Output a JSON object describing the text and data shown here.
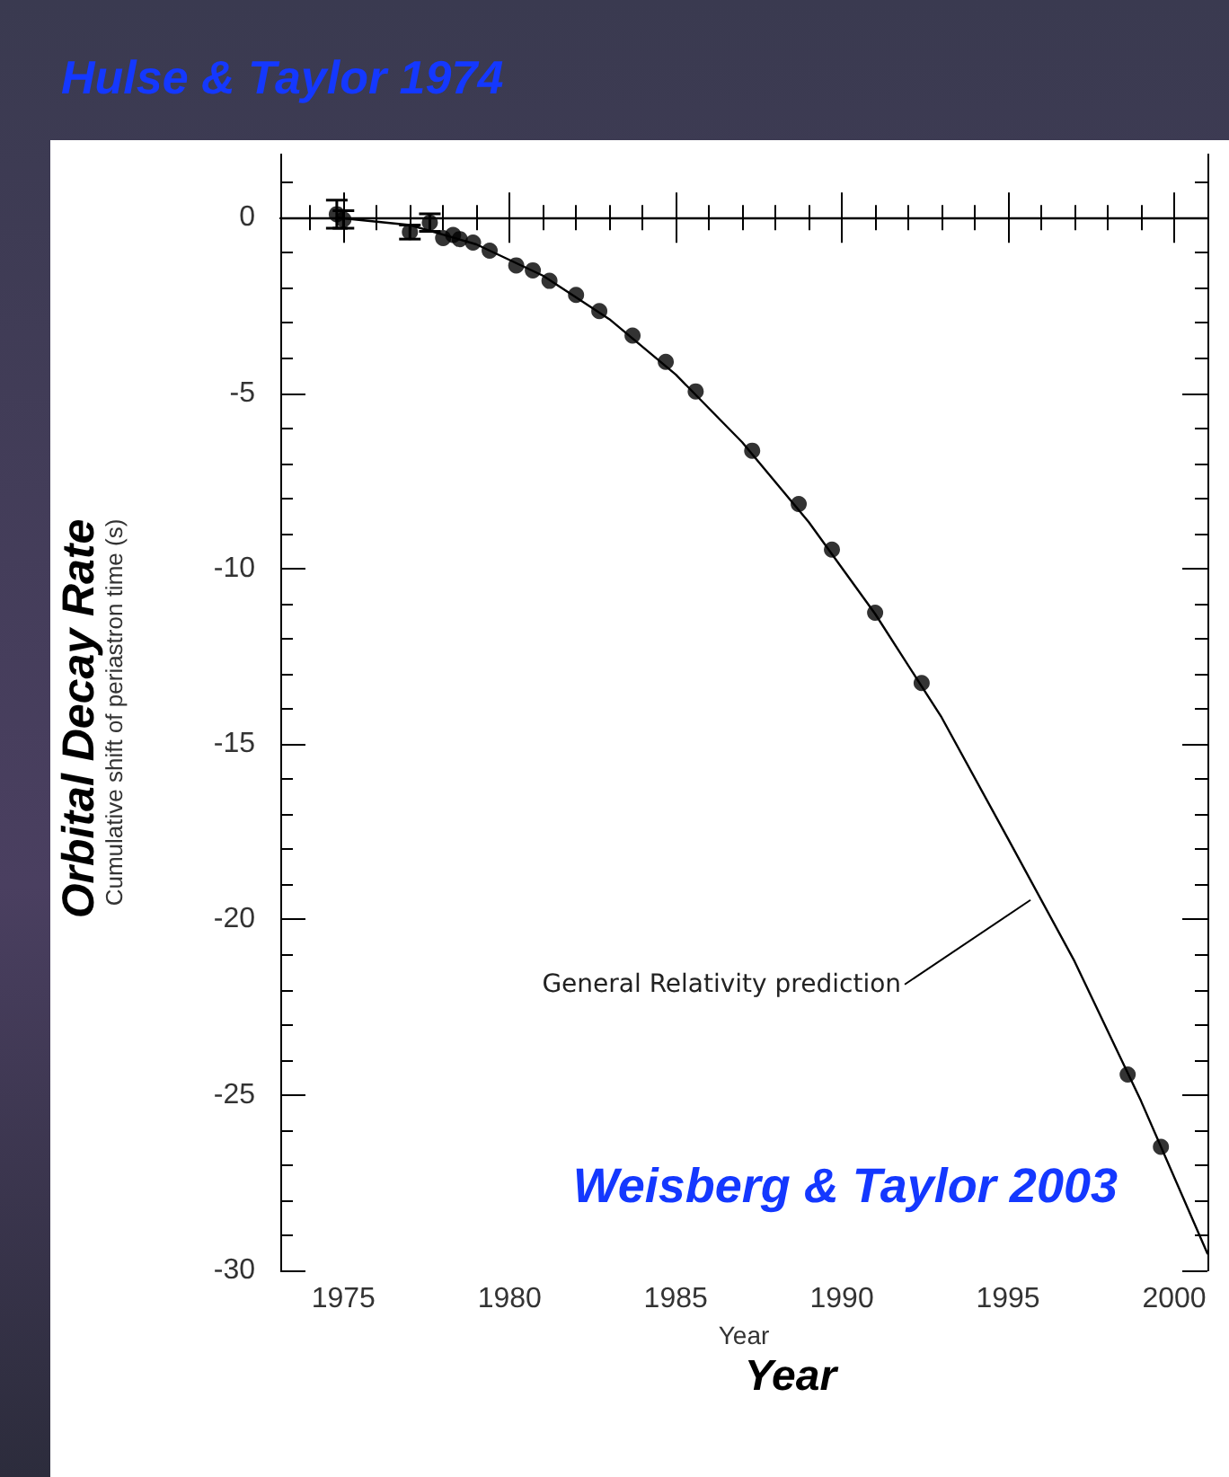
{
  "chart_data": {
    "type": "scatter",
    "title": "Hulse & Taylor 1974",
    "xlabel": "Year",
    "ylabel": "Cumulative shift of periastron time (s)",
    "annotations": [
      "General Relativity prediction",
      "Weisberg & Taylor 2003",
      "Orbital Decay Rate",
      "Year"
    ],
    "xlim": [
      1973.1,
      2001
    ],
    "xticks": [
      {
        "value": 1974,
        "label": null
      },
      1975,
      {
        "value": 1976,
        "label": null
      },
      {
        "value": 1977,
        "label": null
      },
      {
        "value": 1978,
        "label": null
      },
      {
        "value": 1979,
        "label": null
      },
      1980,
      {
        "value": 1981,
        "label": null
      },
      {
        "value": 1982,
        "label": null
      },
      {
        "value": 1983,
        "label": null
      },
      {
        "value": 1984,
        "label": null
      },
      1985,
      {
        "value": 1986,
        "label": null
      },
      {
        "value": 1987,
        "label": null
      },
      {
        "value": 1988,
        "label": null
      },
      {
        "value": 1989,
        "label": null
      },
      1990,
      {
        "value": 1991,
        "label": null
      },
      {
        "value": 1992,
        "label": null
      },
      {
        "value": 1993,
        "label": null
      },
      {
        "value": 1994,
        "label": null
      },
      1995,
      {
        "value": 1996,
        "label": null
      },
      {
        "value": 1997,
        "label": null
      },
      {
        "value": 1998,
        "label": null
      },
      {
        "value": 1999,
        "label": null
      },
      2000
    ],
    "ylim": [
      -30,
      1.8
    ],
    "yticks": [
      -30,
      {
        "value": -29,
        "label": null
      },
      {
        "value": -28,
        "label": null
      },
      {
        "value": -27,
        "label": null
      },
      {
        "value": -26,
        "label": null
      },
      -25,
      {
        "value": -24,
        "label": null
      },
      {
        "value": -23,
        "label": null
      },
      {
        "value": -22,
        "label": null
      },
      {
        "value": -21,
        "label": null
      },
      -20,
      {
        "value": -19,
        "label": null
      },
      {
        "value": -18,
        "label": null
      },
      {
        "value": -17,
        "label": null
      },
      {
        "value": -16,
        "label": null
      },
      -15,
      {
        "value": -14,
        "label": null
      },
      {
        "value": -13,
        "label": null
      },
      {
        "value": -12,
        "label": null
      },
      {
        "value": -11,
        "label": null
      },
      -10,
      {
        "value": -9,
        "label": null
      },
      {
        "value": -8,
        "label": null
      },
      {
        "value": -7,
        "label": null
      },
      {
        "value": -6,
        "label": null
      },
      -5,
      {
        "value": -4,
        "label": null
      },
      {
        "value": -3,
        "label": null
      },
      {
        "value": -2,
        "label": null
      },
      {
        "value": -1,
        "label": null
      },
      0,
      {
        "value": 1,
        "label": null
      }
    ],
    "ref_lines": [
      {
        "axis": "y",
        "value": 0,
        "color": "#000000"
      }
    ],
    "marker": "circle",
    "series": [
      {
        "color": "#000000",
        "x": [
          1974.8,
          1975.0,
          1977.0,
          1977.6,
          1978.0,
          1978.3,
          1978.5,
          1978.9,
          1979.4,
          1980.2,
          1980.7,
          1981.2,
          1982.0,
          1982.7,
          1983.7,
          1984.7,
          1985.6,
          1987.3,
          1988.7,
          1989.7,
          1991.0,
          1992.4,
          1998.6,
          1999.6
        ],
        "values": [
          0.1,
          -0.05,
          -0.41,
          -0.14,
          -0.58,
          -0.49,
          -0.61,
          -0.71,
          -0.94,
          -1.36,
          -1.5,
          -1.8,
          -2.2,
          -2.66,
          -3.36,
          -4.11,
          -4.95,
          -6.64,
          -8.16,
          -9.46,
          -11.26,
          -13.26,
          -24.42,
          -26.48
        ],
        "errors": [
          0.4,
          0.25,
          0.2,
          0.25,
          null,
          null,
          null,
          null,
          null,
          null,
          null,
          null,
          null,
          null,
          null,
          null,
          null,
          null,
          null,
          null,
          null,
          null,
          null,
          null
        ]
      },
      {
        "type": "line",
        "color": "#000000",
        "line_style": "solid",
        "marker": "none",
        "x": [
          1974.8,
          1977,
          1979,
          1981,
          1983,
          1985,
          1987,
          1989,
          1991,
          1993,
          1995,
          1997,
          1999,
          2001
        ],
        "values": [
          0.0,
          -0.21,
          -0.76,
          -1.65,
          -2.89,
          -4.47,
          -6.4,
          -8.67,
          -11.29,
          -14.24,
          -17.7,
          -21.19,
          -25.17,
          -29.52
        ]
      }
    ]
  }
}
